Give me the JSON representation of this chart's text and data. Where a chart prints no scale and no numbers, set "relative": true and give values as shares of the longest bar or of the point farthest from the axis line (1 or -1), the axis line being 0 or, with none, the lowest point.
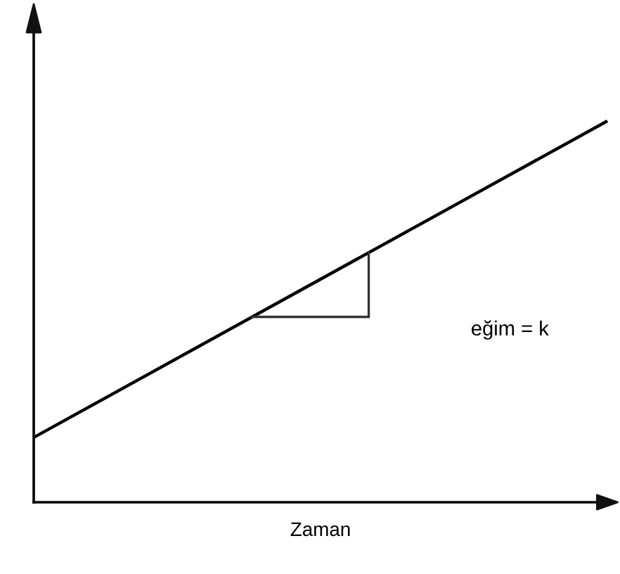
{
  "chart_data": {
    "type": "line",
    "xlabel": "Zaman",
    "annotations": [
      "eğim = k"
    ],
    "categories": [
      null,
      null
    ],
    "series": [
      {
        "color": "#000000",
        "values": [
          0.17,
          1
        ]
      }
    ],
    "relative": true,
    "line_style": "solid"
  }
}
